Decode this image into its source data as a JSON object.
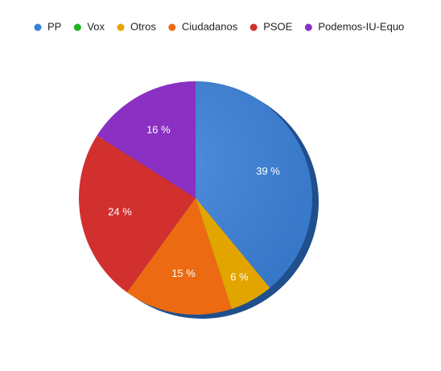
{
  "chart_data": {
    "type": "pie",
    "categories": [
      "PP",
      "Vox",
      "Otros",
      "Ciudadanos",
      "PSOE",
      "Podemos-IU-Equo"
    ],
    "values": [
      39,
      0,
      6,
      15,
      24,
      16
    ],
    "value_labels": [
      "39 %",
      null,
      "6 %",
      "15 %",
      "24 %",
      "16 %"
    ],
    "colors": [
      "#3a80d8",
      "#1fb31f",
      "#e2a500",
      "#ec6b12",
      "#d1302f",
      "#8a30c2"
    ],
    "legend": "top"
  }
}
